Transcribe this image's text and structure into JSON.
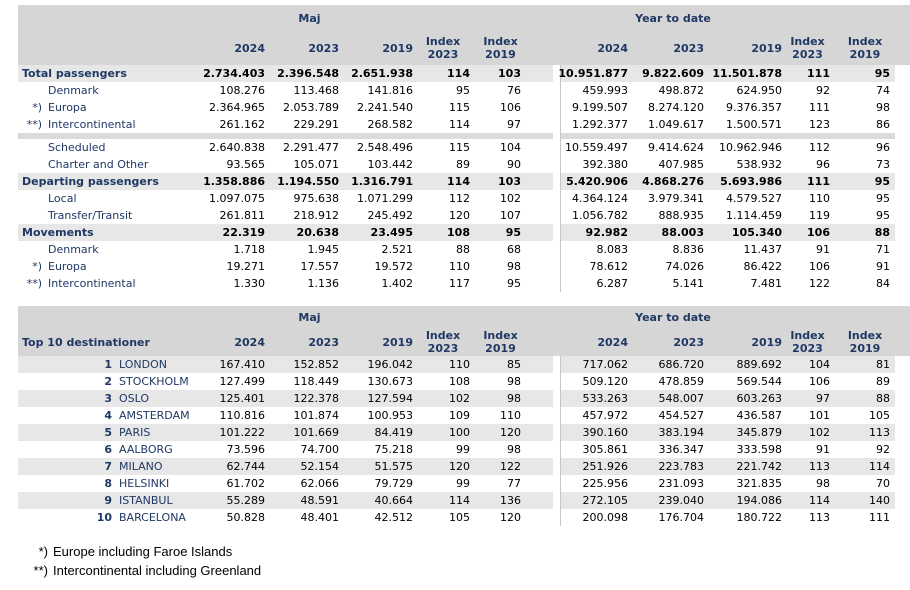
{
  "colors": {
    "navy_text": "#1F3864",
    "header_bg": "#D6D6D6",
    "stripe_bg": "#E7E7E7",
    "number_text": "#000000"
  },
  "header": {
    "maj": "Maj",
    "ytd": "Year to date",
    "years": [
      "2024",
      "2023",
      "2019"
    ],
    "index_2023": "Index\n2023",
    "index_2019": "Index\n2019"
  },
  "table1": {
    "rows": [
      {
        "type": "section",
        "label": "Total passengers",
        "values": [
          "2.734.403",
          "2.396.548",
          "2.651.938",
          "114",
          "103",
          "10.951.877",
          "9.822.609",
          "11.501.878",
          "111",
          "95"
        ]
      },
      {
        "type": "sub",
        "label": "Denmark",
        "values": [
          "108.276",
          "113.468",
          "141.816",
          "95",
          "76",
          "459.993",
          "498.872",
          "624.950",
          "92",
          "74"
        ]
      },
      {
        "type": "sub",
        "prefix": "*)",
        "label": "Europa",
        "values": [
          "2.364.965",
          "2.053.789",
          "2.241.540",
          "115",
          "106",
          "9.199.507",
          "8.274.120",
          "9.376.357",
          "111",
          "98"
        ]
      },
      {
        "type": "sub",
        "prefix": "**)",
        "label": "Intercontinental",
        "values": [
          "261.162",
          "229.291",
          "268.582",
          "114",
          "97",
          "1.292.377",
          "1.049.617",
          "1.500.571",
          "123",
          "86"
        ]
      },
      {
        "type": "separator"
      },
      {
        "type": "sub",
        "label": "Scheduled",
        "values": [
          "2.640.838",
          "2.291.477",
          "2.548.496",
          "115",
          "104",
          "10.559.497",
          "9.414.624",
          "10.962.946",
          "112",
          "96"
        ]
      },
      {
        "type": "sub",
        "label": "Charter and Other",
        "values": [
          "93.565",
          "105.071",
          "103.442",
          "89",
          "90",
          "392.380",
          "407.985",
          "538.932",
          "96",
          "73"
        ]
      },
      {
        "type": "section",
        "label": "Departing passengers",
        "values": [
          "1.358.886",
          "1.194.550",
          "1.316.791",
          "114",
          "103",
          "5.420.906",
          "4.868.276",
          "5.693.986",
          "111",
          "95"
        ]
      },
      {
        "type": "sub",
        "label": "Local",
        "values": [
          "1.097.075",
          "975.638",
          "1.071.299",
          "112",
          "102",
          "4.364.124",
          "3.979.341",
          "4.579.527",
          "110",
          "95"
        ]
      },
      {
        "type": "sub",
        "label": "Transfer/Transit",
        "values": [
          "261.811",
          "218.912",
          "245.492",
          "120",
          "107",
          "1.056.782",
          "888.935",
          "1.114.459",
          "119",
          "95"
        ]
      },
      {
        "type": "section",
        "label": "Movements",
        "values": [
          "22.319",
          "20.638",
          "23.495",
          "108",
          "95",
          "92.982",
          "88.003",
          "105.340",
          "106",
          "88"
        ]
      },
      {
        "type": "sub",
        "label": "Denmark",
        "values": [
          "1.718",
          "1.945",
          "2.521",
          "88",
          "68",
          "8.083",
          "8.836",
          "11.437",
          "91",
          "71"
        ]
      },
      {
        "type": "sub",
        "prefix": "*)",
        "label": "Europa",
        "values": [
          "19.271",
          "17.557",
          "19.572",
          "110",
          "98",
          "78.612",
          "74.026",
          "86.422",
          "106",
          "91"
        ]
      },
      {
        "type": "sub",
        "prefix": "**)",
        "label": "Intercontinental",
        "values": [
          "1.330",
          "1.136",
          "1.402",
          "117",
          "95",
          "6.287",
          "5.141",
          "7.481",
          "122",
          "84"
        ]
      }
    ]
  },
  "table2": {
    "title": "Top 10 destinationer",
    "rows": [
      {
        "rank": "1",
        "city": "LONDON",
        "values": [
          "167.410",
          "152.852",
          "196.042",
          "110",
          "85",
          "717.062",
          "686.720",
          "889.692",
          "104",
          "81"
        ]
      },
      {
        "rank": "2",
        "city": "STOCKHOLM",
        "values": [
          "127.499",
          "118.449",
          "130.673",
          "108",
          "98",
          "509.120",
          "478.859",
          "569.544",
          "106",
          "89"
        ]
      },
      {
        "rank": "3",
        "city": "OSLO",
        "values": [
          "125.401",
          "122.378",
          "127.594",
          "102",
          "98",
          "533.263",
          "548.007",
          "603.263",
          "97",
          "88"
        ]
      },
      {
        "rank": "4",
        "city": "AMSTERDAM",
        "values": [
          "110.816",
          "101.874",
          "100.953",
          "109",
          "110",
          "457.972",
          "454.527",
          "436.587",
          "101",
          "105"
        ]
      },
      {
        "rank": "5",
        "city": "PARIS",
        "values": [
          "101.222",
          "101.669",
          "84.419",
          "100",
          "120",
          "390.160",
          "383.194",
          "345.879",
          "102",
          "113"
        ]
      },
      {
        "rank": "6",
        "city": "AALBORG",
        "values": [
          "73.596",
          "74.700",
          "75.218",
          "99",
          "98",
          "305.861",
          "336.347",
          "333.598",
          "91",
          "92"
        ]
      },
      {
        "rank": "7",
        "city": "MILANO",
        "values": [
          "62.744",
          "52.154",
          "51.575",
          "120",
          "122",
          "251.926",
          "223.783",
          "221.742",
          "113",
          "114"
        ]
      },
      {
        "rank": "8",
        "city": "HELSINKI",
        "values": [
          "61.702",
          "62.066",
          "79.729",
          "99",
          "77",
          "225.956",
          "231.093",
          "321.835",
          "98",
          "70"
        ]
      },
      {
        "rank": "9",
        "city": "ISTANBUL",
        "values": [
          "55.289",
          "48.591",
          "40.664",
          "114",
          "136",
          "272.105",
          "239.040",
          "194.086",
          "114",
          "140"
        ]
      },
      {
        "rank": "10",
        "city": "BARCELONA",
        "values": [
          "50.828",
          "48.401",
          "42.512",
          "105",
          "120",
          "200.098",
          "176.704",
          "180.722",
          "113",
          "111"
        ]
      }
    ]
  },
  "footnotes": [
    {
      "marker": "*)",
      "text": "Europe including Faroe Islands"
    },
    {
      "marker": "**)",
      "text": "Intercontinental including Greenland"
    }
  ]
}
